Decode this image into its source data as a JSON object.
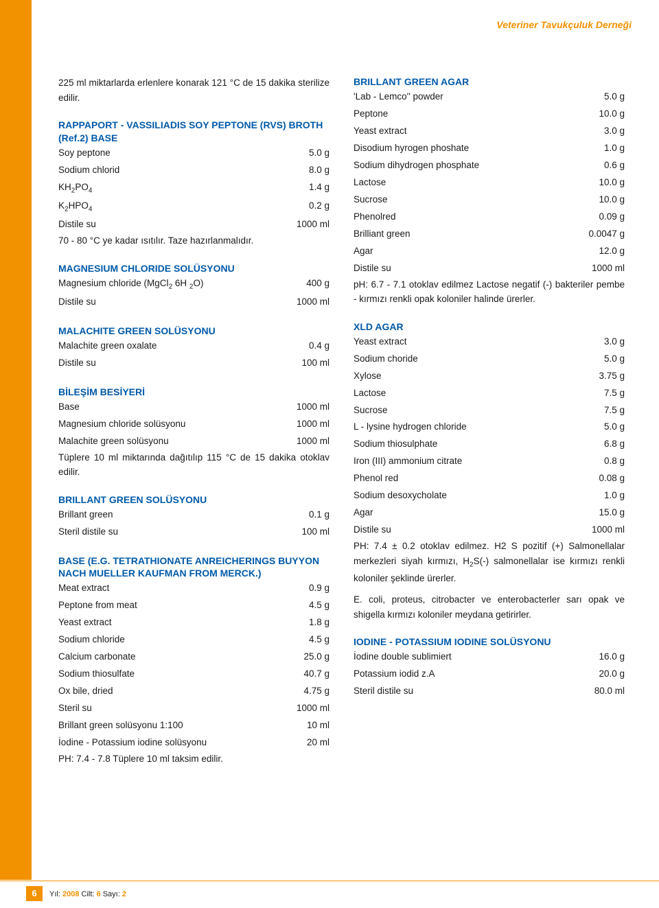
{
  "colors": {
    "accent_orange": "#f39200",
    "heading_blue": "#005aa9",
    "text": "#1a1a1a",
    "background": "#ffffff"
  },
  "typography": {
    "body_fontsize": 13.5,
    "heading_fontsize": 14,
    "line_height_body": 1.6,
    "line_height_row": 1.85,
    "font_family": "Verdana, Arial, sans-serif"
  },
  "header": {
    "association": "Veteriner Tavukçuluk Derneği"
  },
  "left": {
    "intro": "225 ml miktarlarda erlenlere konarak 121 °C de 15 dakika sterilize edilir.",
    "rappaport": {
      "title": "RAPPAPORT - VASSILIADIS SOY PEPTONE (RVS) BROTH (Ref.2) BASE",
      "rows": [
        {
          "label": "Soy peptone",
          "val": "5.0 g"
        },
        {
          "label": "Sodium chlorid",
          "val": "8.0 g"
        },
        {
          "label_html": "KH<sub>2</sub>PO<sub>4</sub>",
          "val": "1.4 g"
        },
        {
          "label_html": "K<sub>2</sub>HPO<sub>4</sub>",
          "val": "0.2 g"
        },
        {
          "label": "Distile su",
          "val": "1000 ml"
        }
      ],
      "note": "70 - 80 °C ye kadar ısıtılır. Taze hazırlanmalıdır."
    },
    "mgcl": {
      "title": "MAGNESIUM CHLORIDE SOLÜSYONU",
      "rows": [
        {
          "label_html": "Magnesium chloride (MgCl<sub>2</sub> 6H <sub>2</sub>O)",
          "val": "400 g"
        },
        {
          "label": "Distile su",
          "val": "1000 ml"
        }
      ]
    },
    "malachite": {
      "title": "MALACHITE GREEN SOLÜSYONU",
      "rows": [
        {
          "label": "Malachite green oxalate",
          "val": "0.4 g"
        },
        {
          "label": "Distile su",
          "val": "100 ml"
        }
      ]
    },
    "bilesim": {
      "title": "BİLEŞİM BESİYERİ",
      "rows": [
        {
          "label": "Base",
          "val": "1000 ml"
        },
        {
          "label": "Magnesium chloride solüsyonu",
          "val": "1000 ml"
        },
        {
          "label": "Malachite green solüsyonu",
          "val": "1000 ml"
        }
      ],
      "note": "Tüplere 10 ml miktarında dağıtılıp 115 °C de 15 dakika otoklav edilir."
    },
    "bgs": {
      "title": "BRILLANT GREEN SOLÜSYONU",
      "rows": [
        {
          "label": "Brillant green",
          "val": "0.1 g"
        },
        {
          "label": "Steril distile su",
          "val": "100 ml"
        }
      ]
    },
    "base_eg": {
      "title": "BASE (E.G. TETRATHIONATE ANREICHERINGS BUYYON NACH MUELLER KAUFMAN FROM MERCK.)",
      "rows": [
        {
          "label": "Meat extract",
          "val": "0.9 g"
        },
        {
          "label": "Peptone from meat",
          "val": "4.5 g"
        },
        {
          "label": "Yeast extract",
          "val": "1.8 g"
        },
        {
          "label": "Sodium chloride",
          "val": "4.5 g"
        },
        {
          "label": "Calcium carbonate",
          "val": "25.0 g"
        },
        {
          "label": "Sodium thiosulfate",
          "val": "40.7 g"
        },
        {
          "label": "Ox bile, dried",
          "val": "4.75 g"
        },
        {
          "label": "Steril su",
          "val": "1000 ml"
        },
        {
          "label": "Brillant green solüsyonu 1:100",
          "val": "10 ml"
        },
        {
          "label": "İodine - Potassium iodine solüsyonu",
          "val": "20 ml"
        }
      ],
      "note": "PH: 7.4 - 7.8 Tüplere 10 ml taksim edilir."
    }
  },
  "right": {
    "bga": {
      "title": "BRILLANT GREEN AGAR",
      "rows": [
        {
          "label": "'Lab - Lemco'' powder",
          "val": "5.0 g"
        },
        {
          "label": "Peptone",
          "val": "10.0 g"
        },
        {
          "label": "Yeast extract",
          "val": "3.0 g"
        },
        {
          "label": "Disodium hyrogen phoshate",
          "val": "1.0 g"
        },
        {
          "label": "Sodium dihydrogen phosphate",
          "val": "0.6 g"
        },
        {
          "label": "Lactose",
          "val": "10.0 g"
        },
        {
          "label": "Sucrose",
          "val": "10.0 g"
        },
        {
          "label": "Phenolred",
          "val": "0.09 g"
        },
        {
          "label": "Brilliant green",
          "val": "0.0047 g"
        },
        {
          "label": "Agar",
          "val": "12.0 g"
        },
        {
          "label": "Distile su",
          "val": "1000 ml"
        }
      ],
      "note": "pH: 6.7 - 7.1 otoklav edilmez Lactose negatif (-) bakteriler pembe - kırmızı renkli opak koloniler halinde ürerler."
    },
    "xld": {
      "title": "XLD AGAR",
      "rows": [
        {
          "label": "Yeast extract",
          "val": "3.0 g"
        },
        {
          "label": "Sodium choride",
          "val": "5.0 g"
        },
        {
          "label": "Xylose",
          "val": "3.75 g"
        },
        {
          "label": "Lactose",
          "val": "7.5 g"
        },
        {
          "label": "Sucrose",
          "val": "7.5 g"
        },
        {
          "label": "L - lysine hydrogen chloride",
          "val": "5.0 g"
        },
        {
          "label": "Sodium thiosulphate",
          "val": "6.8 g"
        },
        {
          "label": "Iron (III) ammonium citrate",
          "val": "0.8 g"
        },
        {
          "label": "Phenol red",
          "val": "0.08 g"
        },
        {
          "label": "Sodium desoxycholate",
          "val": "1.0 g"
        },
        {
          "label": "Agar",
          "val": "15.0 g"
        },
        {
          "label": "Distile su",
          "val": "1000 ml"
        }
      ],
      "note1_html": "PH: 7.4 ± 0.2 otoklav edilmez. H2 S pozitif (+) Salmonellalar merkezleri siyah kırmızı, H<sub>2</sub>S(-) salmonellalar ise kırmızı renkli koloniler şeklinde ürerler.",
      "note2": "E. coli, proteus, citrobacter ve enterobacterler sarı opak ve shigella kırmızı koloniler meydana getirirler."
    },
    "iodine": {
      "title": "IODINE - POTASSIUM IODINE SOLÜSYONU",
      "rows": [
        {
          "label": "İodine double sublimiert",
          "val": "16.0 g"
        },
        {
          "label": "Potassium iodid z.A",
          "val": "20.0 g"
        },
        {
          "label": "Steril distile su",
          "val": "80.0 ml"
        }
      ]
    }
  },
  "footer": {
    "page": "6",
    "year_label": "Yıl:",
    "year": "2008",
    "cilt_label": "Cilt:",
    "cilt": "6",
    "sayi_label": "Sayı:",
    "sayi": "2"
  }
}
